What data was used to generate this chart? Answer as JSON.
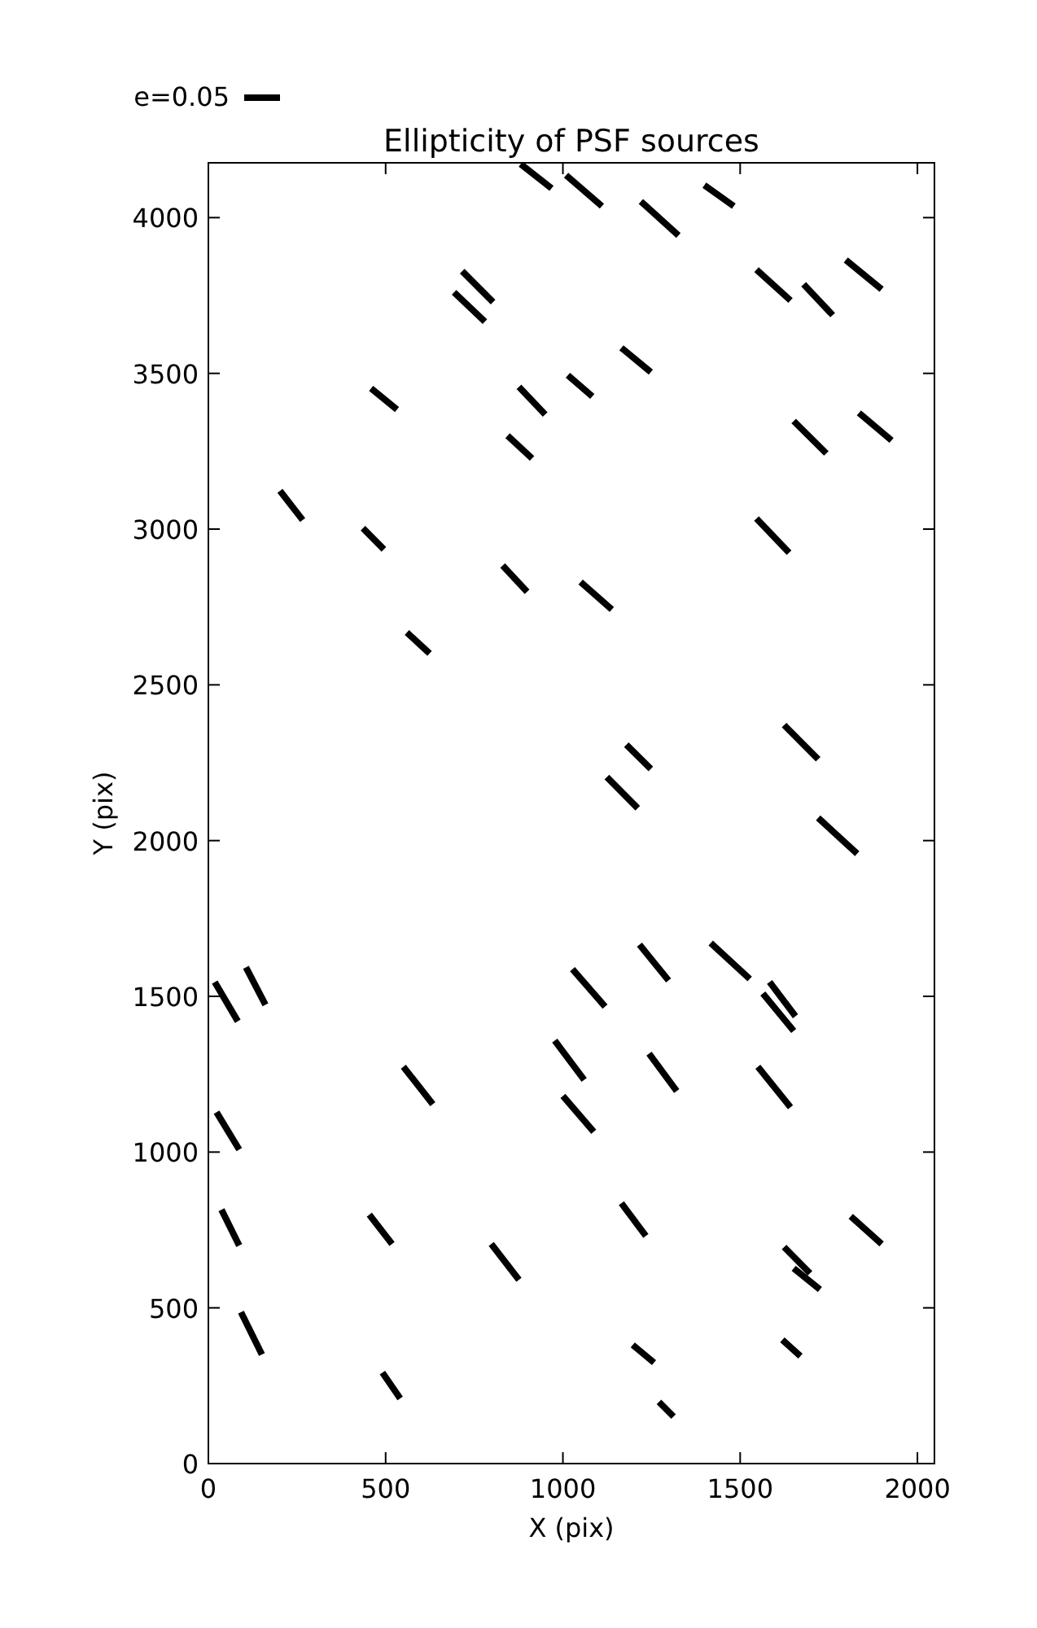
{
  "chart_data": {
    "type": "line",
    "title": "Ellipticity of PSF sources",
    "xlabel": "X (pix)",
    "ylabel": "Y (pix)",
    "annotations": [
      "e=0.05"
    ],
    "xlim": [
      0,
      2048
    ],
    "ylim": [
      0,
      4176
    ],
    "xticks": [
      0,
      500,
      1000,
      1500,
      2000
    ],
    "yticks": [
      0,
      500,
      1000,
      1500,
      2000,
      2500,
      3000,
      3500,
      4000
    ],
    "grid": false,
    "marker": "none",
    "line_style": "solid",
    "series": [
      {
        "color": "#000000",
        "x": [
          881,
          968
        ],
        "values": [
          4172,
          4094
        ]
      },
      {
        "color": "#000000",
        "x": [
          1009,
          1110
        ],
        "values": [
          4136,
          4037
        ]
      },
      {
        "color": "#000000",
        "x": [
          1220,
          1326
        ],
        "values": [
          4052,
          3943
        ]
      },
      {
        "color": "#000000",
        "x": [
          1399,
          1482
        ],
        "values": [
          4104,
          4037
        ]
      },
      {
        "color": "#000000",
        "x": [
          716,
          803
        ],
        "values": [
          3828,
          3729
        ]
      },
      {
        "color": "#000000",
        "x": [
          693,
          780
        ],
        "values": [
          3760,
          3666
        ]
      },
      {
        "color": "#000000",
        "x": [
          1546,
          1642
        ],
        "values": [
          3833,
          3734
        ]
      },
      {
        "color": "#000000",
        "x": [
          1679,
          1761
        ],
        "values": [
          3786,
          3687
        ]
      },
      {
        "color": "#000000",
        "x": [
          1798,
          1899
        ],
        "values": [
          3864,
          3770
        ]
      },
      {
        "color": "#000000",
        "x": [
          1165,
          1248
        ],
        "values": [
          3582,
          3504
        ]
      },
      {
        "color": "#000000",
        "x": [
          1014,
          1083
        ],
        "values": [
          3494,
          3426
        ]
      },
      {
        "color": "#000000",
        "x": [
          876,
          950
        ],
        "values": [
          3457,
          3368
        ]
      },
      {
        "color": "#000000",
        "x": [
          459,
          532
        ],
        "values": [
          3452,
          3384
        ]
      },
      {
        "color": "#000000",
        "x": [
          844,
          913
        ],
        "values": [
          3300,
          3227
        ]
      },
      {
        "color": "#000000",
        "x": [
          1651,
          1743
        ],
        "values": [
          3347,
          3243
        ]
      },
      {
        "color": "#000000",
        "x": [
          1835,
          1927
        ],
        "values": [
          3373,
          3285
        ]
      },
      {
        "color": "#000000",
        "x": [
          202,
          266
        ],
        "values": [
          3123,
          3029
        ]
      },
      {
        "color": "#000000",
        "x": [
          436,
          495
        ],
        "values": [
          3003,
          2935
        ]
      },
      {
        "color": "#000000",
        "x": [
          1546,
          1638
        ],
        "values": [
          3034,
          2924
        ]
      },
      {
        "color": "#000000",
        "x": [
          830,
          899
        ],
        "values": [
          2883,
          2799
        ]
      },
      {
        "color": "#000000",
        "x": [
          1050,
          1138
        ],
        "values": [
          2830,
          2742
        ]
      },
      {
        "color": "#000000",
        "x": [
          560,
          624
        ],
        "values": [
          2668,
          2601
        ]
      },
      {
        "color": "#000000",
        "x": [
          1624,
          1720
        ],
        "values": [
          2371,
          2261
        ]
      },
      {
        "color": "#000000",
        "x": [
          1179,
          1248
        ],
        "values": [
          2308,
          2230
        ]
      },
      {
        "color": "#000000",
        "x": [
          1124,
          1211
        ],
        "values": [
          2204,
          2104
        ]
      },
      {
        "color": "#000000",
        "x": [
          1720,
          1830
        ],
        "values": [
          2073,
          1958
        ]
      },
      {
        "color": "#000000",
        "x": [
          18,
          83
        ],
        "values": [
          1546,
          1420
        ]
      },
      {
        "color": "#000000",
        "x": [
          106,
          161
        ],
        "values": [
          1593,
          1473
        ]
      },
      {
        "color": "#000000",
        "x": [
          1027,
          1119
        ],
        "values": [
          1587,
          1467
        ]
      },
      {
        "color": "#000000",
        "x": [
          1216,
          1298
        ],
        "values": [
          1666,
          1551
        ]
      },
      {
        "color": "#000000",
        "x": [
          1417,
          1527
        ],
        "values": [
          1671,
          1556
        ]
      },
      {
        "color": "#000000",
        "x": [
          1583,
          1656
        ],
        "values": [
          1546,
          1436
        ]
      },
      {
        "color": "#000000",
        "x": [
          1564,
          1651
        ],
        "values": [
          1509,
          1389
        ]
      },
      {
        "color": "#000000",
        "x": [
          550,
          633
        ],
        "values": [
          1274,
          1154
        ]
      },
      {
        "color": "#000000",
        "x": [
          977,
          1060
        ],
        "values": [
          1358,
          1232
        ]
      },
      {
        "color": "#000000",
        "x": [
          1243,
          1321
        ],
        "values": [
          1316,
          1196
        ]
      },
      {
        "color": "#000000",
        "x": [
          1550,
          1642
        ],
        "values": [
          1274,
          1144
        ]
      },
      {
        "color": "#000000",
        "x": [
          1000,
          1087
        ],
        "values": [
          1180,
          1065
        ]
      },
      {
        "color": "#000000",
        "x": [
          23,
          87
        ],
        "values": [
          1128,
          1008
        ]
      },
      {
        "color": "#000000",
        "x": [
          37,
          87
        ],
        "values": [
          815,
          700
        ]
      },
      {
        "color": "#000000",
        "x": [
          454,
          518
        ],
        "values": [
          799,
          705
        ]
      },
      {
        "color": "#000000",
        "x": [
          798,
          876
        ],
        "values": [
          705,
          590
        ]
      },
      {
        "color": "#000000",
        "x": [
          1165,
          1234
        ],
        "values": [
          836,
          731
        ]
      },
      {
        "color": "#000000",
        "x": [
          1812,
          1899
        ],
        "values": [
          794,
          705
        ]
      },
      {
        "color": "#000000",
        "x": [
          1624,
          1697
        ],
        "values": [
          695,
          611
        ]
      },
      {
        "color": "#000000",
        "x": [
          1651,
          1725
        ],
        "values": [
          627,
          559
        ]
      },
      {
        "color": "#000000",
        "x": [
          92,
          151
        ],
        "values": [
          486,
          350
        ]
      },
      {
        "color": "#000000",
        "x": [
          1197,
          1257
        ],
        "values": [
          381,
          324
        ]
      },
      {
        "color": "#000000",
        "x": [
          1619,
          1670
        ],
        "values": [
          397,
          345
        ]
      },
      {
        "color": "#000000",
        "x": [
          491,
          541
        ],
        "values": [
          292,
          209
        ]
      },
      {
        "color": "#000000",
        "x": [
          1271,
          1312
        ],
        "values": [
          198,
          151
        ]
      }
    ]
  }
}
